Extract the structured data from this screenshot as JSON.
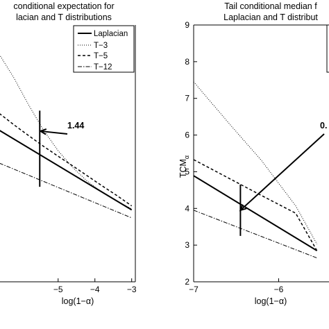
{
  "chart_data": [
    {
      "type": "line",
      "title": [
        "conditional expectation for",
        "lacian and T distributions"
      ],
      "xlabel": "",
      "ylabel": "",
      "xlim": [
        -6.6,
        -2.9
      ],
      "ylim": [
        0.0,
        9.0
      ],
      "x_ticks": [
        -5,
        -4,
        -3
      ],
      "x_tick_labels": [
        "−5",
        "−4",
        "−3"
      ],
      "legend": {
        "position": "top-right",
        "entries": [
          "Laplacian",
          "T−3",
          "T−5",
          "T−12"
        ]
      },
      "series": [
        {
          "name": "Laplacian",
          "style": "solid",
          "x": [
            -6.6,
            -3.0
          ],
          "y": [
            5.31,
            2.52
          ]
        },
        {
          "name": "T−3",
          "style": "dotted",
          "x": [
            -6.6,
            -6.2,
            -5.8,
            -5.4,
            -5.0,
            -4.6,
            -4.2,
            -3.8,
            -3.4,
            -3.0
          ],
          "y": [
            7.97,
            7.14,
            6.19,
            5.32,
            4.59,
            4.0,
            3.52,
            3.13,
            2.83,
            2.56
          ]
        },
        {
          "name": "T−5",
          "style": "dashed",
          "x": [
            -6.6,
            -6.2,
            -5.8,
            -5.4,
            -5.0,
            -4.6,
            -4.2,
            -3.8,
            -3.4,
            -3.0
          ],
          "y": [
            5.9,
            5.5,
            5.12,
            4.75,
            4.4,
            4.06,
            3.71,
            3.36,
            3.02,
            2.66
          ]
        },
        {
          "name": "T−12",
          "style": "dashdot",
          "x": [
            -6.6,
            -3.0
          ],
          "y": [
            4.16,
            2.24
          ]
        }
      ],
      "vertical_marker": {
        "x": -5.5,
        "y_from": 3.33,
        "y_to": 6.0
      },
      "annotation": {
        "text": "1.44",
        "x": -5.48,
        "y": 5.28
      }
    },
    {
      "type": "line",
      "title": [
        "Tail conditional median f",
        "Laplacian and T distribut"
      ],
      "xlabel": "log(1−α)",
      "ylabel": "TCM",
      "ylabel_subscript": "α",
      "xlim": [
        -7.0,
        -5.4
      ],
      "ylim": [
        2.0,
        9.0
      ],
      "x_ticks": [
        -7,
        -6,
        -5
      ],
      "x_tick_labels": [
        "−7",
        "−6",
        "−5"
      ],
      "y_ticks": [
        2,
        3,
        4,
        5,
        6,
        7,
        8,
        9
      ],
      "y_tick_labels": [
        "2",
        "3",
        "4",
        "5",
        "6",
        "7",
        "8",
        "9"
      ],
      "legend": {
        "position": "top-right",
        "entries": []
      },
      "series": [
        {
          "name": "Laplacian",
          "style": "solid",
          "x": [
            -7.0,
            -5.55
          ],
          "y": [
            4.89,
            2.85
          ]
        },
        {
          "name": "T−3",
          "style": "dotted",
          "x": [
            -7.0,
            -6.6,
            -6.2,
            -5.8,
            -5.55
          ],
          "y": [
            7.45,
            6.36,
            5.3,
            4.07,
            3.03
          ]
        },
        {
          "name": "T−5",
          "style": "dashed",
          "x": [
            -7.0,
            -6.6,
            -6.2,
            -5.8,
            -5.55
          ],
          "y": [
            5.33,
            4.84,
            4.35,
            3.87,
            2.85
          ]
        },
        {
          "name": "T−12",
          "style": "dashdot",
          "x": [
            -7.0,
            -5.55
          ],
          "y": [
            3.95,
            2.65
          ]
        }
      ],
      "vertical_marker": {
        "x": -6.45,
        "y_from": 3.25,
        "y_to": 4.65
      },
      "annotation": {
        "text": "0.",
        "x": -6.45,
        "y": 3.95
      }
    }
  ],
  "bottom_xlabel_left": "log(1−α)"
}
